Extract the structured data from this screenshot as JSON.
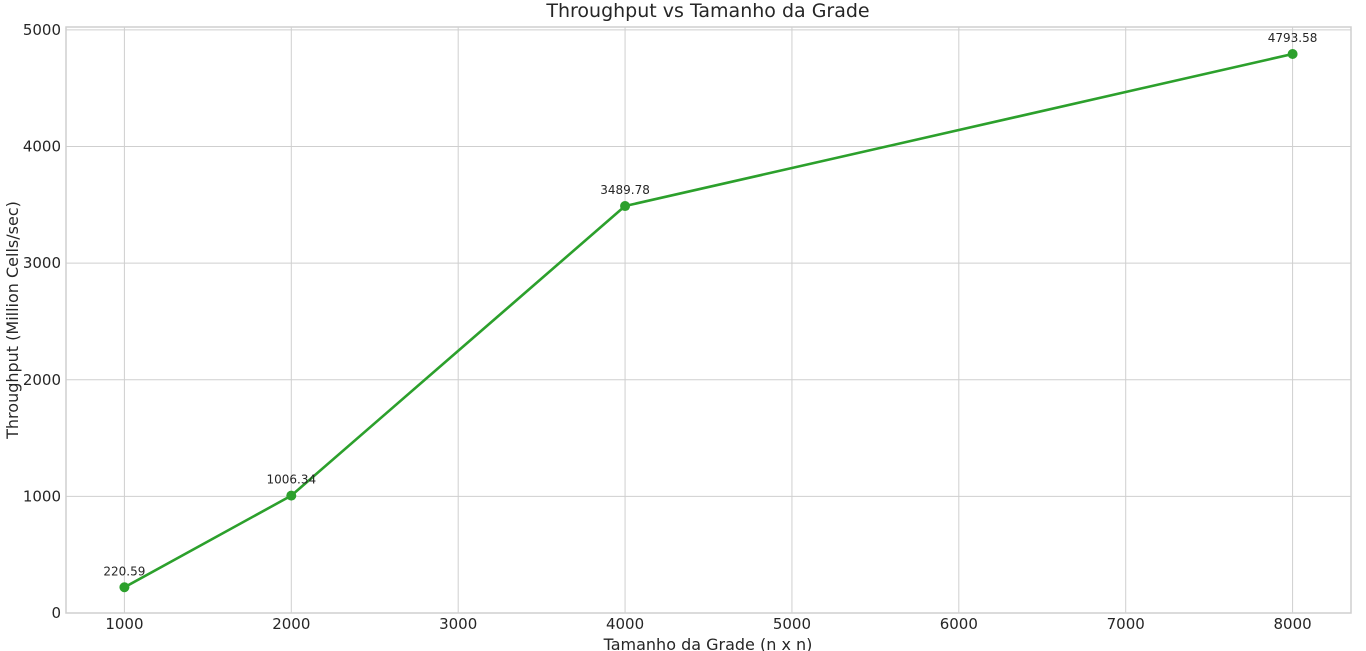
{
  "chart_data": {
    "type": "line",
    "title": "Throughput vs Tamanho da Grade",
    "xlabel": "Tamanho da Grade (n x n)",
    "ylabel": "Throughput (Million Cells/sec)",
    "x": [
      1000,
      2000,
      4000,
      8000
    ],
    "series": [
      {
        "values": [
          220.59,
          1006.34,
          3489.78,
          4793.58
        ],
        "color": "#2ca02c"
      }
    ],
    "data_labels": [
      "220.59",
      "1006.34",
      "3489.78",
      "4793.58"
    ],
    "x_ticks": [
      1000,
      2000,
      3000,
      4000,
      5000,
      6000,
      7000,
      8000
    ],
    "y_ticks": [
      0,
      1000,
      2000,
      3000,
      4000,
      5000
    ],
    "xlim": [
      650,
      8350
    ],
    "ylim": [
      0,
      5025
    ],
    "grid": true
  }
}
